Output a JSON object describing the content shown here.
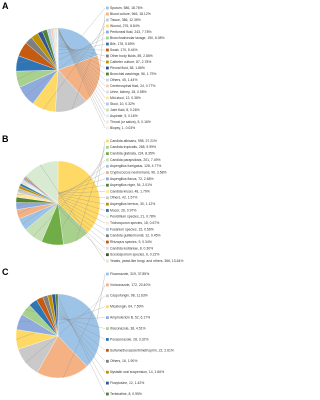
{
  "chart_data": [
    {
      "type": "pie",
      "panel_label": "A",
      "categories": [
        "Sputum, 586, 18.76%",
        "Blood culture, 566, 18.12%",
        "Tissue, 386, 12.35%",
        "Wound, 276, 8.84%",
        "Peritoneal fluid, 243, 7.78%",
        "Bronchoalveolar lavage, 190, 6.08%",
        "Bile, 178, 5.69%",
        "Swab, 170, 5.44%",
        "Other body fluids, 89, 2.85%",
        "Catheter culture, 87, 2.78%",
        "Pleural fluid, 58, 1.86%",
        "Bronchial washings, 56, 1.79%",
        "Others, 45, 1.44%",
        "Cerebrospinal fluid, 24, 0.77%",
        "Urine, kidney, 18, 0.58%",
        "Mid-stool, 12, 0.38%",
        "Stool, 10, 0.32%",
        "Joint fluid, 8, 0.26%",
        "Aspirate, 5, 0.16%",
        "Throat (or saliva), 5, 0.16%",
        "Biopsy, 1, 0.03%"
      ],
      "values": [
        18.76,
        18.12,
        12.35,
        8.84,
        7.78,
        6.08,
        5.69,
        5.44,
        2.85,
        2.78,
        1.86,
        1.79,
        1.44,
        0.77,
        0.58,
        0.38,
        0.32,
        0.26,
        0.16,
        0.16,
        0.03
      ],
      "colors": [
        "#9dc3e6",
        "#f4b183",
        "#c9c9c9",
        "#ffd966",
        "#8faadc",
        "#a9d18e",
        "#2e75b6",
        "#c55a11",
        "#7f7f7f",
        "#bf9000",
        "#2f5597",
        "#548235",
        "#bdd7ee",
        "#f8cbad",
        "#dbdbdb",
        "#ffe699",
        "#b4c7e7",
        "#c5e0b4",
        "#deebf7",
        "#fbe5d6",
        "#ededed"
      ]
    },
    {
      "type": "pie",
      "panel_label": "B",
      "categories": [
        "Candida albicans, 998, 37.21%",
        "Candida tropicalis, 268, 9.99%",
        "Candida glabrata, 224, 8.35%",
        "Candida parapsilosis, 201, 7.49%",
        "Aspergillus fumigatus, 128, 4.77%",
        "Cryptococcus neoformans, 96, 3.58%",
        "Aspergillus flavus, 72, 2.68%",
        "Aspergillus niger, 54, 2.01%",
        "Candida krusei, 48, 1.79%",
        "Others, 42, 1.57%",
        "Aspergillus terreus, 30, 1.12%",
        "Mucor, 26, 0.97%",
        "Penicillium species, 21, 0.78%",
        "Trichosporon species, 18, 0.67%",
        "Fusarium species, 15, 0.56%",
        "Candida guilliermondii, 12, 0.45%",
        "Rhizopus species, 9, 0.34%",
        "Candida lusitaniae, 8, 0.30%",
        "Scedosporium species, 6, 0.22%",
        "Yeasts, yeast-like fungi, and others, 366, 13.64%"
      ],
      "values": [
        37.21,
        9.99,
        8.35,
        7.49,
        4.77,
        3.58,
        2.68,
        2.01,
        1.79,
        1.57,
        1.12,
        0.97,
        0.78,
        0.67,
        0.56,
        0.45,
        0.34,
        0.3,
        0.22,
        13.64
      ],
      "colors": [
        "#ffd966",
        "#a9d18e",
        "#70ad47",
        "#c5e0b4",
        "#9dc3e6",
        "#f4b183",
        "#8faadc",
        "#548235",
        "#ffe699",
        "#c9c9c9",
        "#bf9000",
        "#2e75b6",
        "#e2f0d9",
        "#fbe5d6",
        "#b4c7e7",
        "#7f7f7f",
        "#c55a11",
        "#dbdbdb",
        "#385723",
        "#d9ead3"
      ]
    },
    {
      "type": "pie",
      "panel_label": "C",
      "categories": [
        "Fluconazole, 319, 37.85%",
        "Voriconazole, 172, 20.40%",
        "Caspofungin, 98, 11.63%",
        "Micafungin, 64, 7.59%",
        "Amphotericin B, 52, 6.17%",
        "Itraconazole, 38, 4.51%",
        "Posaconazole, 28, 3.32%",
        "Sulfamethoxazole/trimethoprim, 22, 2.61%",
        "Others, 16, 1.90%",
        "Nystatin oral suspension, 14, 1.66%",
        "Flucytosine, 12, 1.42%",
        "Terbinafine, 8, 0.95%"
      ],
      "values": [
        37.85,
        20.4,
        11.63,
        7.59,
        6.17,
        4.51,
        3.32,
        2.61,
        1.9,
        1.66,
        1.42,
        0.95
      ],
      "colors": [
        "#9dc3e6",
        "#f4b183",
        "#c9c9c9",
        "#ffd966",
        "#8faadc",
        "#a9d18e",
        "#2e75b6",
        "#c55a11",
        "#7f7f7f",
        "#bf9000",
        "#2f5597",
        "#548235"
      ]
    }
  ]
}
